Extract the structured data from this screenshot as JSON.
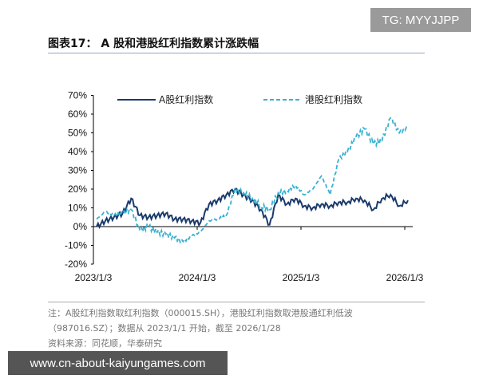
{
  "watermark_top": "TG: MYYJJPP",
  "watermark_bottom": "www.cn-about-kaiyungames.com",
  "figure_title": "图表17： A 股和港股红利指数累计涨跌幅",
  "note_line1": "注：A股红利指数取红利指数（000015.SH），港股红利指数取港股通红利低波",
  "note_line2": "（987016.SZ）；数据从 2023/1/1 开始，截至 2026/1/28",
  "source": "资料来源：同花顺，华泰研究",
  "chart_data": {
    "type": "line",
    "title": "",
    "ylim": [
      -20,
      70
    ],
    "yticks": [
      "70%",
      "60%",
      "50%",
      "40%",
      "30%",
      "20%",
      "10%",
      "0%",
      "-10%",
      "-20%"
    ],
    "ytick_values": [
      70,
      60,
      50,
      40,
      30,
      20,
      10,
      0,
      -10,
      -20
    ],
    "xticks": [
      "2023/1/3",
      "2024/1/3",
      "2025/1/3",
      "2026/1/3"
    ],
    "legend_position": "top",
    "grid": false,
    "x": [
      "2023-01",
      "2023-02",
      "2023-03",
      "2023-04",
      "2023-05",
      "2023-06",
      "2023-07",
      "2023-08",
      "2023-09",
      "2023-10",
      "2023-11",
      "2023-12",
      "2024-01",
      "2024-02",
      "2024-03",
      "2024-04",
      "2024-05",
      "2024-06",
      "2024-07",
      "2024-08",
      "2024-09",
      "2024-10",
      "2024-11",
      "2024-12",
      "2025-01",
      "2025-02",
      "2025-03",
      "2025-04",
      "2025-05",
      "2025-06",
      "2025-07",
      "2025-08",
      "2025-09",
      "2025-10",
      "2025-11",
      "2025-12",
      "2026-01"
    ],
    "series": [
      {
        "name": "A股红利指数",
        "color": "#1a3a6b",
        "style": "solid",
        "values": [
          0,
          3,
          5,
          7,
          15,
          6,
          5,
          6,
          7,
          4,
          4,
          3,
          2,
          12,
          14,
          17,
          20,
          17,
          14,
          9,
          1,
          17,
          12,
          15,
          11,
          10,
          12,
          11,
          13,
          13,
          15,
          14,
          9,
          15,
          17,
          11,
          14
        ]
      },
      {
        "name": "港股红利指数",
        "color": "#3ab0d0",
        "style": "dashed",
        "values": [
          4,
          8,
          6,
          7,
          9,
          -2,
          0,
          -3,
          -4,
          -6,
          -8,
          -5,
          -3,
          3,
          4,
          6,
          20,
          18,
          15,
          11,
          9,
          18,
          19,
          22,
          17,
          20,
          27,
          17,
          36,
          40,
          48,
          52,
          44,
          46,
          58,
          50,
          53
        ]
      }
    ]
  }
}
